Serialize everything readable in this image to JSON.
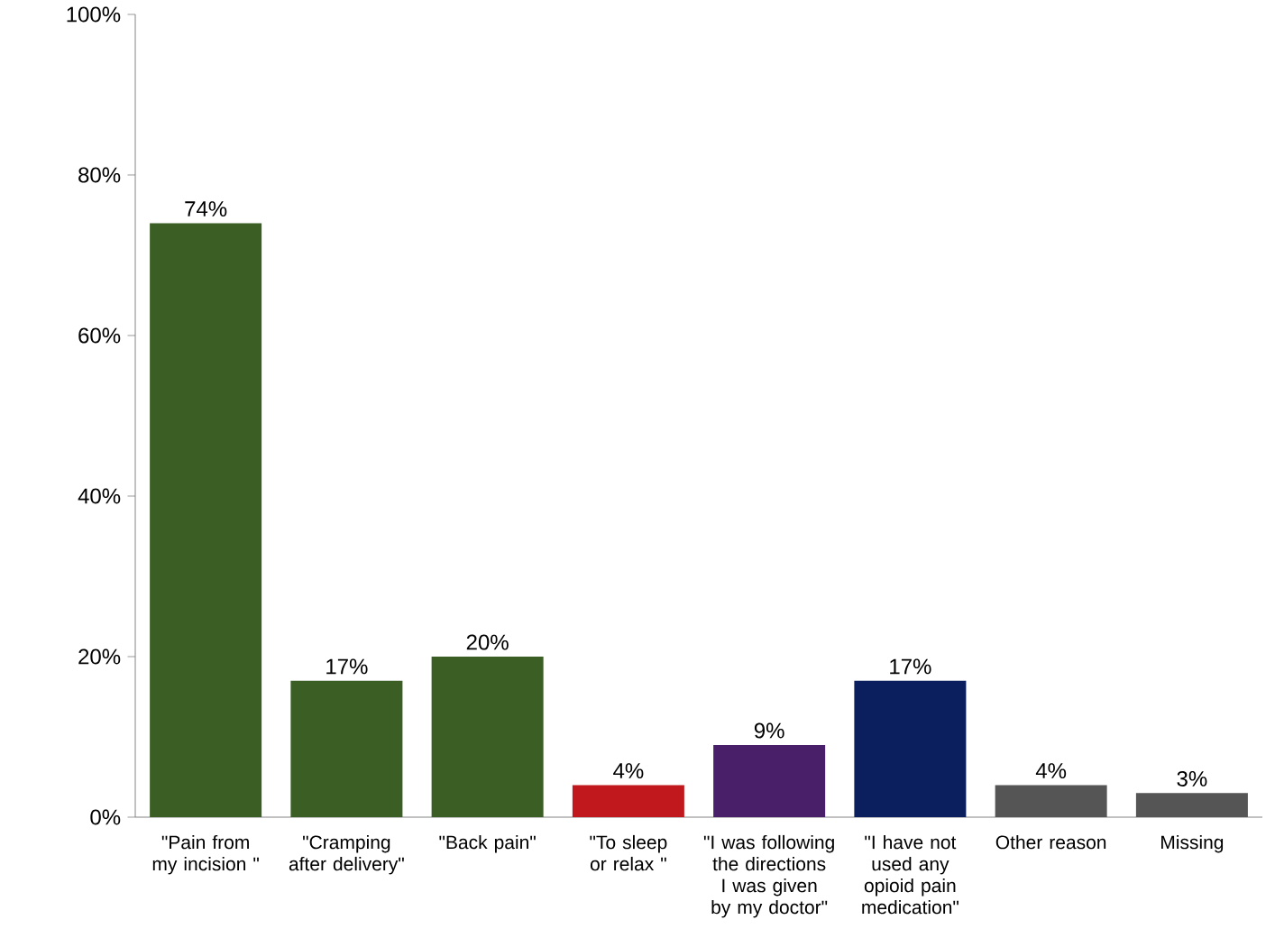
{
  "chart_data": {
    "type": "bar",
    "categories": [
      "\"Pain from my incision \"",
      "\"Cramping after delivery\"",
      "\"Back pain\"",
      "\"To sleep or relax \"",
      "\"I was following the directions I was given by my doctor\"",
      "\"I have not used any opioid pain medication\"",
      "Other reason",
      "Missing"
    ],
    "values": [
      74,
      17,
      20,
      4,
      9,
      17,
      4,
      3
    ],
    "value_labels": [
      "74%",
      "17%",
      "20%",
      "4%",
      "9%",
      "17%",
      "4%",
      "3%"
    ],
    "colors": [
      "#3b5e25",
      "#3b5e25",
      "#3b5e25",
      "#c0181d",
      "#4a1f6a",
      "#0b1f5e",
      "#555555",
      "#555555"
    ],
    "ylim": [
      0,
      100
    ],
    "yticks": [
      {
        "value": 0,
        "label": "0%"
      },
      {
        "value": 20,
        "label": "20%"
      },
      {
        "value": 40,
        "label": "40%"
      },
      {
        "value": 60,
        "label": "60%"
      },
      {
        "value": 80,
        "label": "80%"
      },
      {
        "value": 100,
        "label": "100%"
      }
    ],
    "grid": false
  }
}
